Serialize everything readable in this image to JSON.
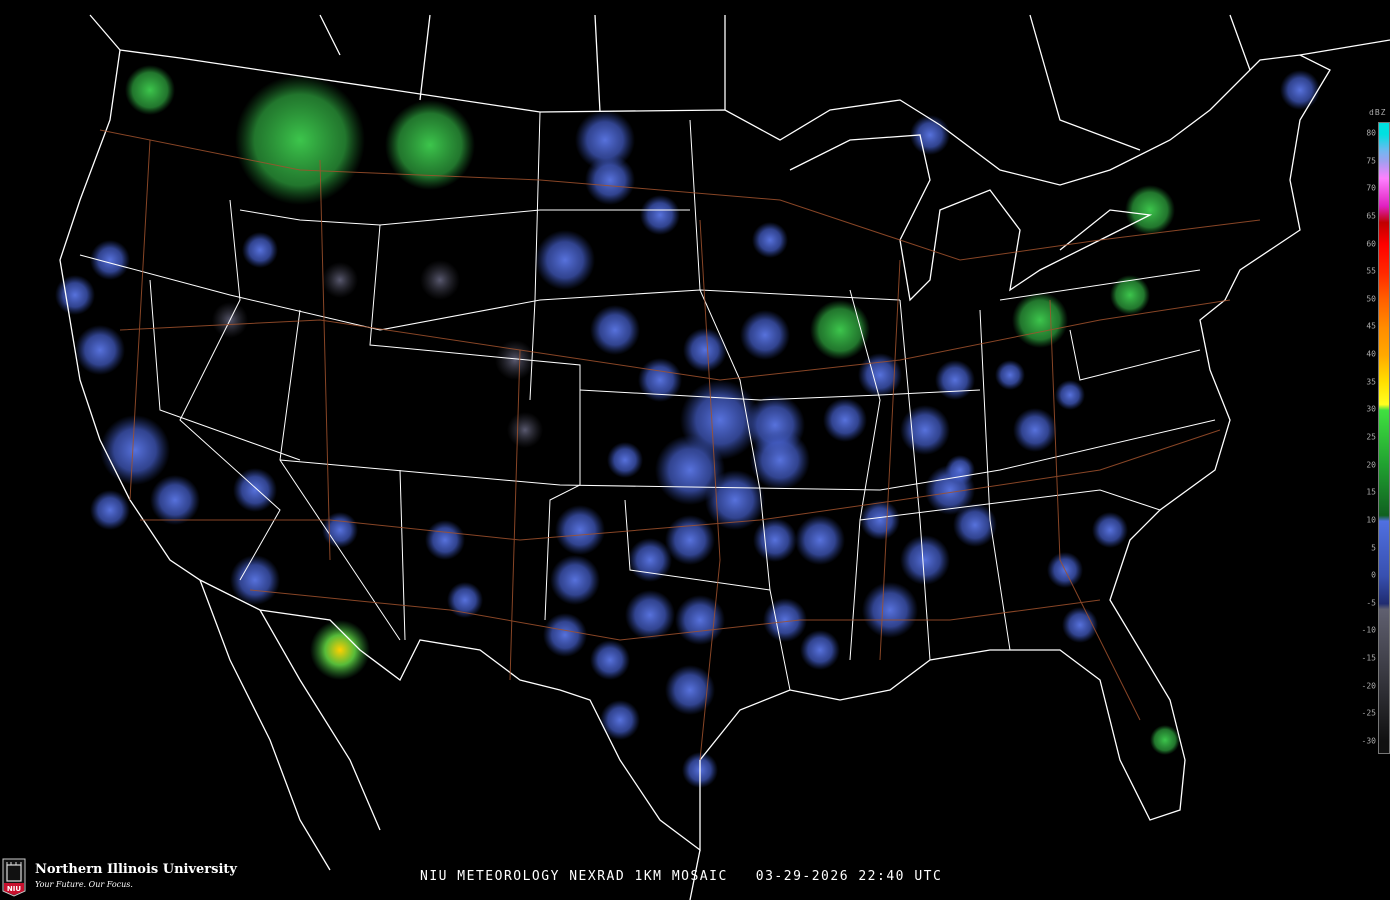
{
  "footer": {
    "title": "NIU METEOROLOGY NEXRAD 1KM MOSAIC   03-29-2026 22:40 UTC"
  },
  "logo": {
    "name": "Northern Illinois University",
    "tagline": "Your Future. Our Focus.",
    "mark": "NIU"
  },
  "legend": {
    "unit": "dBZ",
    "ticks": [
      "80",
      "75",
      "70",
      "65",
      "60",
      "55",
      "50",
      "45",
      "40",
      "35",
      "30",
      "25",
      "20",
      "15",
      "10",
      "5",
      "0",
      "-5",
      "-10",
      "-15",
      "-20",
      "-25",
      "-30"
    ],
    "colors": {
      "80": "#00e0e0",
      "77": "#70b8f0",
      "75": "#a0a0f0",
      "72": "#ff80ff",
      "67": "#e020c0",
      "64": "#c00000",
      "60": "#ff0000",
      "55": "#ff2800",
      "50": "#ff6000",
      "45": "#ff8c00",
      "40": "#ffa800",
      "35": "#ffe000",
      "31": "#ffff20",
      "30": "#40e040",
      "20": "#20a030",
      "11": "#106020",
      "10": "#5070e0",
      "0": "#3850b0",
      "-5": "#202c70",
      "-6": "#606070",
      "-30": "#101010"
    }
  },
  "colors": {
    "boundary": "#ffffff",
    "highway": "#a0522d",
    "radar_light": "#4a64d8",
    "radar_green": "#30c040",
    "radar_heavy": "#ffd000"
  }
}
